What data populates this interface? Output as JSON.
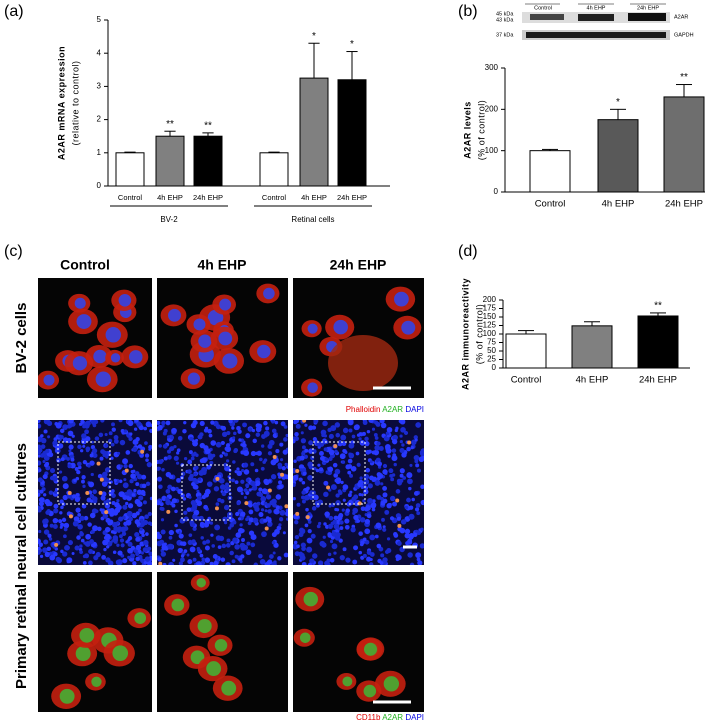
{
  "panel_labels": [
    "(a)",
    "(b)",
    "(c)",
    "(d)"
  ],
  "chart_data": [
    {
      "type": "bar",
      "y_label": "A2AR mRNA expression",
      "y_label_2": "(relative to control)",
      "categories": [
        "Control",
        "4h EHP",
        "24h EHP",
        "Control",
        "4h EHP",
        "24h EHP"
      ],
      "groups": [
        "BV-2",
        "Retinal cells"
      ],
      "values": [
        1,
        1.5,
        1.5,
        1,
        3.25,
        3.2
      ],
      "errors": [
        0.02,
        0.15,
        0.1,
        0.02,
        1.05,
        0.85
      ],
      "annotations": [
        null,
        "**",
        "**",
        null,
        "*",
        "*"
      ],
      "colors": [
        "#ffffff",
        "#808080",
        "#000000",
        "#ffffff",
        "#808080",
        "#000000"
      ],
      "ylim": [
        0,
        5
      ],
      "yticks": [
        0,
        1,
        2,
        3,
        4,
        5
      ]
    },
    {
      "type": "bar",
      "y_label": "A2AR levels",
      "y_label_2": "(% of control)",
      "categories": [
        "Control",
        "4h EHP",
        "24h EHP"
      ],
      "values": [
        100,
        175,
        230
      ],
      "errors": [
        3,
        25,
        30
      ],
      "annotations": [
        null,
        "*",
        "**"
      ],
      "colors": [
        "#ffffff",
        "#595959",
        "#6e6e6e"
      ],
      "ylim": [
        0,
        300
      ],
      "yticks": [
        0,
        100,
        200,
        300
      ]
    },
    {
      "type": "bar",
      "y_label": "A2AR immunoreactivity",
      "y_label_2": "(% of control)",
      "categories": [
        "Control",
        "4h EHP",
        "24h EHP"
      ],
      "values": [
        100,
        124,
        153
      ],
      "errors": [
        10,
        12,
        9
      ],
      "annotations": [
        null,
        null,
        "**"
      ],
      "colors": [
        "#ffffff",
        "#808080",
        "#000000"
      ],
      "ylim": [
        0,
        200
      ],
      "yticks": [
        0,
        25,
        50,
        75,
        100,
        125,
        150,
        175,
        200
      ]
    }
  ],
  "blot": {
    "lanes": [
      "Control",
      "4h EHP",
      "24h EHP"
    ],
    "markers": [
      "45 kDa",
      "43 kDa",
      "37 kDa"
    ],
    "bands": [
      "A2AR",
      "GAPDH"
    ]
  },
  "panel_c": {
    "columns": [
      "Control",
      "4h EHP",
      "24h EHP"
    ],
    "rows": [
      "BV-2 cells",
      "Primary retinal neural cell cultures"
    ],
    "legend_1": [
      "Phalloidin",
      "A2AR",
      "DAPI"
    ],
    "legend_2": [
      "CD11b",
      "A2AR",
      "DAPI"
    ]
  }
}
